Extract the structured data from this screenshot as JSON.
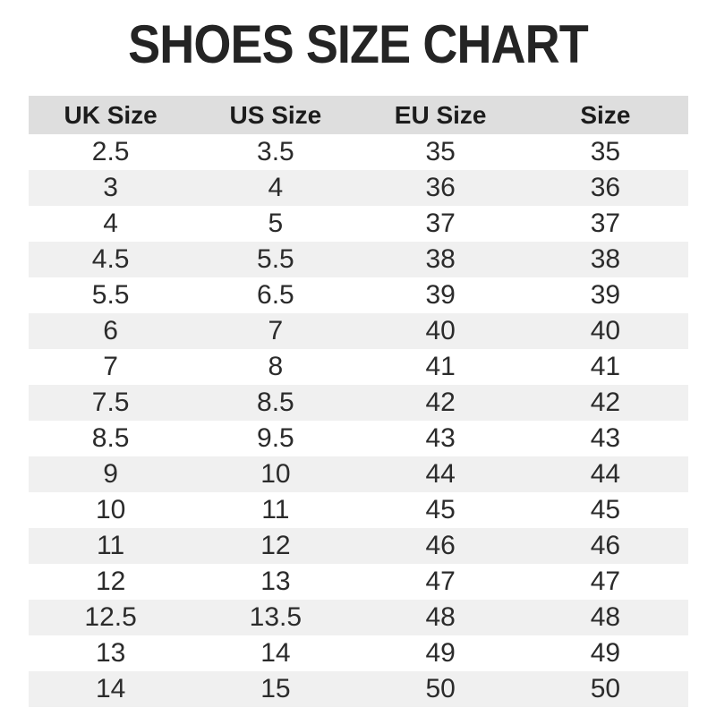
{
  "title": "SHOES SIZE CHART",
  "chart_data": {
    "type": "table",
    "title": "SHOES SIZE CHART",
    "columns": [
      "UK Size",
      "US Size",
      "EU Size",
      "Size"
    ],
    "rows": [
      [
        "2.5",
        "3.5",
        "35",
        "35"
      ],
      [
        "3",
        "4",
        "36",
        "36"
      ],
      [
        "4",
        "5",
        "37",
        "37"
      ],
      [
        "4.5",
        "5.5",
        "38",
        "38"
      ],
      [
        "5.5",
        "6.5",
        "39",
        "39"
      ],
      [
        "6",
        "7",
        "40",
        "40"
      ],
      [
        "7",
        "8",
        "41",
        "41"
      ],
      [
        "7.5",
        "8.5",
        "42",
        "42"
      ],
      [
        "8.5",
        "9.5",
        "43",
        "43"
      ],
      [
        "9",
        "10",
        "44",
        "44"
      ],
      [
        "10",
        "11",
        "45",
        "45"
      ],
      [
        "11",
        "12",
        "46",
        "46"
      ],
      [
        "12",
        "13",
        "47",
        "47"
      ],
      [
        "12.5",
        "13.5",
        "48",
        "48"
      ],
      [
        "13",
        "14",
        "49",
        "49"
      ],
      [
        "14",
        "15",
        "50",
        "50"
      ]
    ],
    "layout": {
      "alternating_rows": true,
      "header_position": "top"
    }
  },
  "colors": {
    "background": "#ffffff",
    "header_bg": "#dedede",
    "row_alt_bg": "#f0f0f0",
    "row_bg": "#ffffff",
    "title_text": "#242424",
    "cell_text": "#2b2b2b"
  }
}
